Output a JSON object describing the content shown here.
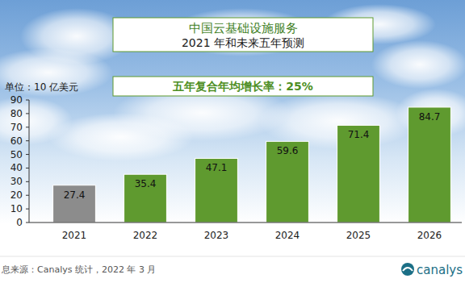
{
  "chart_data": {
    "type": "bar",
    "title": "中国云基础设施服务",
    "subtitle": "2021 年和未来五年预测",
    "y_label": "单位：10 亿美元",
    "annotation": "五年复合年均增长率：25%",
    "source": "息来源：Canalys 统计，2022 年 3 月",
    "logo": "canalys",
    "categories": [
      "2021",
      "2022",
      "2023",
      "2024",
      "2025",
      "2026"
    ],
    "values": [
      27.4,
      35.4,
      47.1,
      59.6,
      71.4,
      84.7
    ],
    "colors": [
      "#8c8c8c",
      "#5f9a2f",
      "#5f9a2f",
      "#5f9a2f",
      "#5f9a2f",
      "#5f9a2f"
    ],
    "ylim": [
      0,
      90
    ],
    "yticks": [
      0,
      10,
      20,
      30,
      40,
      50,
      60,
      70,
      80,
      90
    ],
    "grid": false,
    "data_labels": true
  }
}
